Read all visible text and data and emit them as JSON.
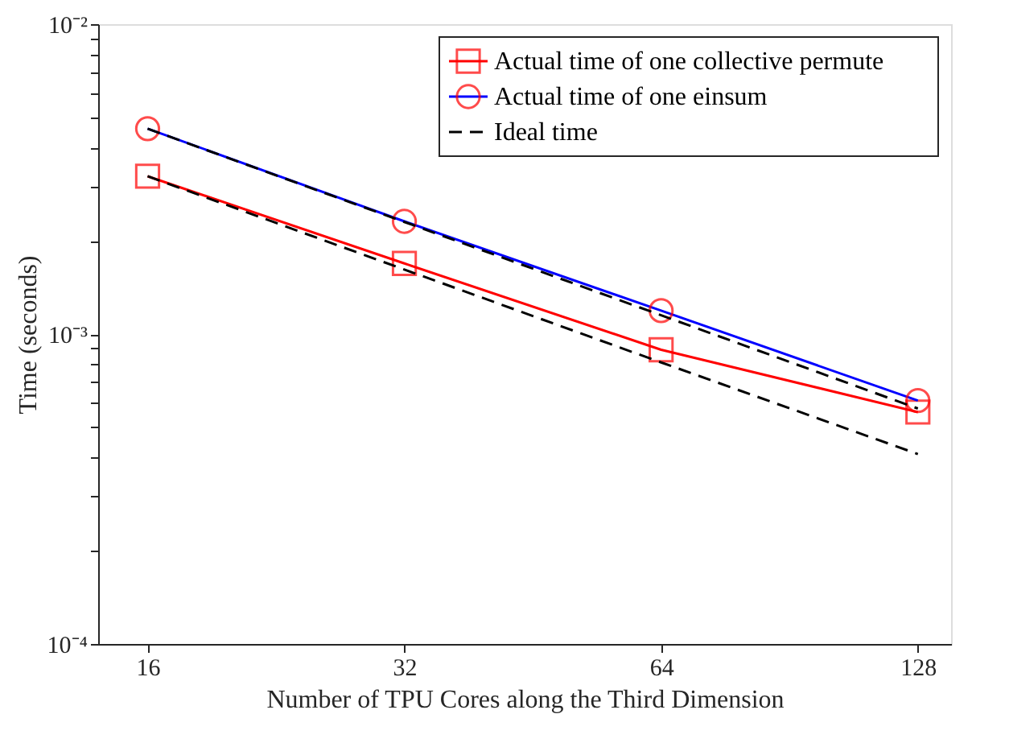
{
  "chart_data": {
    "type": "line",
    "xlabel": "Number of TPU Cores along the Third Dimension",
    "ylabel": "Time (seconds)",
    "log": "xy",
    "xlim": [
      14,
      140
    ],
    "xticks": [
      16,
      32,
      64,
      128
    ],
    "ylim": [
      0.0001,
      0.01
    ],
    "yticks": [
      {
        "value": 0.0001,
        "label": "10⁻⁴"
      },
      {
        "value": 0.0002,
        "label": null
      },
      {
        "value": 0.0003,
        "label": null
      },
      {
        "value": 0.0004,
        "label": null
      },
      {
        "value": 0.0005,
        "label": null
      },
      {
        "value": 0.0006,
        "label": null
      },
      {
        "value": 0.0007,
        "label": null
      },
      {
        "value": 0.0008,
        "label": null
      },
      {
        "value": 0.0009,
        "label": null
      },
      {
        "value": 0.001,
        "label": "10⁻³"
      },
      {
        "value": 0.002,
        "label": null
      },
      {
        "value": 0.003,
        "label": null
      },
      {
        "value": 0.004,
        "label": null
      },
      {
        "value": 0.005,
        "label": null
      },
      {
        "value": 0.006,
        "label": null
      },
      {
        "value": 0.007,
        "label": null
      },
      {
        "value": 0.008,
        "label": null
      },
      {
        "value": 0.009,
        "label": null
      },
      {
        "value": 0.01,
        "label": "10⁻²"
      }
    ],
    "grid": false,
    "legend": "top right",
    "series": [
      {
        "name": "Actual time of one collective permute",
        "color": "#ff0000",
        "marker": "square",
        "line_style": "solid",
        "x": [
          16,
          32,
          64,
          128
        ],
        "values": [
          0.00323,
          0.00169,
          0.00089,
          0.00056
        ]
      },
      {
        "name": "Actual time of one einsum",
        "color": "#0000ff",
        "colors": [
          "#ff0000",
          "#ff0000",
          "#ff0000",
          "#ff0000"
        ],
        "marker": "circle",
        "line_style": "solid",
        "x": [
          16,
          32,
          64,
          128
        ],
        "values": [
          0.0046,
          0.00231,
          0.00119,
          0.00061
        ]
      },
      {
        "name": "Ideal time",
        "color": "#000000",
        "marker": "none",
        "line_style": "dashed",
        "x": [
          16,
          32,
          64,
          128
        ],
        "values": [
          0.0046,
          0.0023,
          0.00115,
          0.000575
        ]
      },
      {
        "color": "#000000",
        "marker": "none",
        "line_style": "dashed",
        "x": [
          16,
          32,
          64,
          128
        ],
        "values": [
          0.00323,
          0.001615,
          0.00081,
          0.00041
        ]
      }
    ]
  }
}
